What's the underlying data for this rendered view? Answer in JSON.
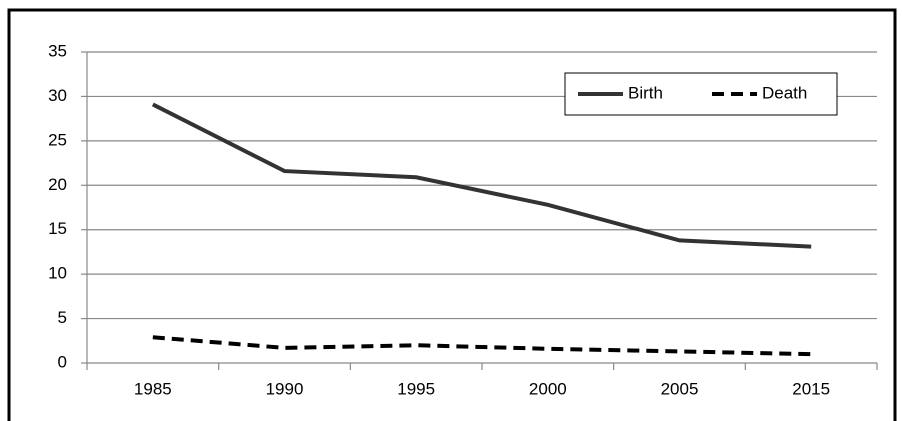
{
  "chart_data": {
    "type": "line",
    "categories": [
      "1985",
      "1990",
      "1995",
      "2000",
      "2005",
      "2015"
    ],
    "series": [
      {
        "name": "Birth",
        "color": "#333333",
        "dash": "solid",
        "values": [
          29.1,
          21.6,
          20.9,
          17.8,
          13.8,
          13.1
        ]
      },
      {
        "name": "Death",
        "color": "#000000",
        "dash": "dashed",
        "values": [
          2.9,
          1.7,
          2.0,
          1.6,
          1.3,
          1.0
        ]
      }
    ],
    "ylim": [
      0,
      35
    ],
    "yticks": [
      0,
      5,
      10,
      15,
      20,
      25,
      30,
      35
    ],
    "grid": true,
    "legend": "upper right"
  }
}
